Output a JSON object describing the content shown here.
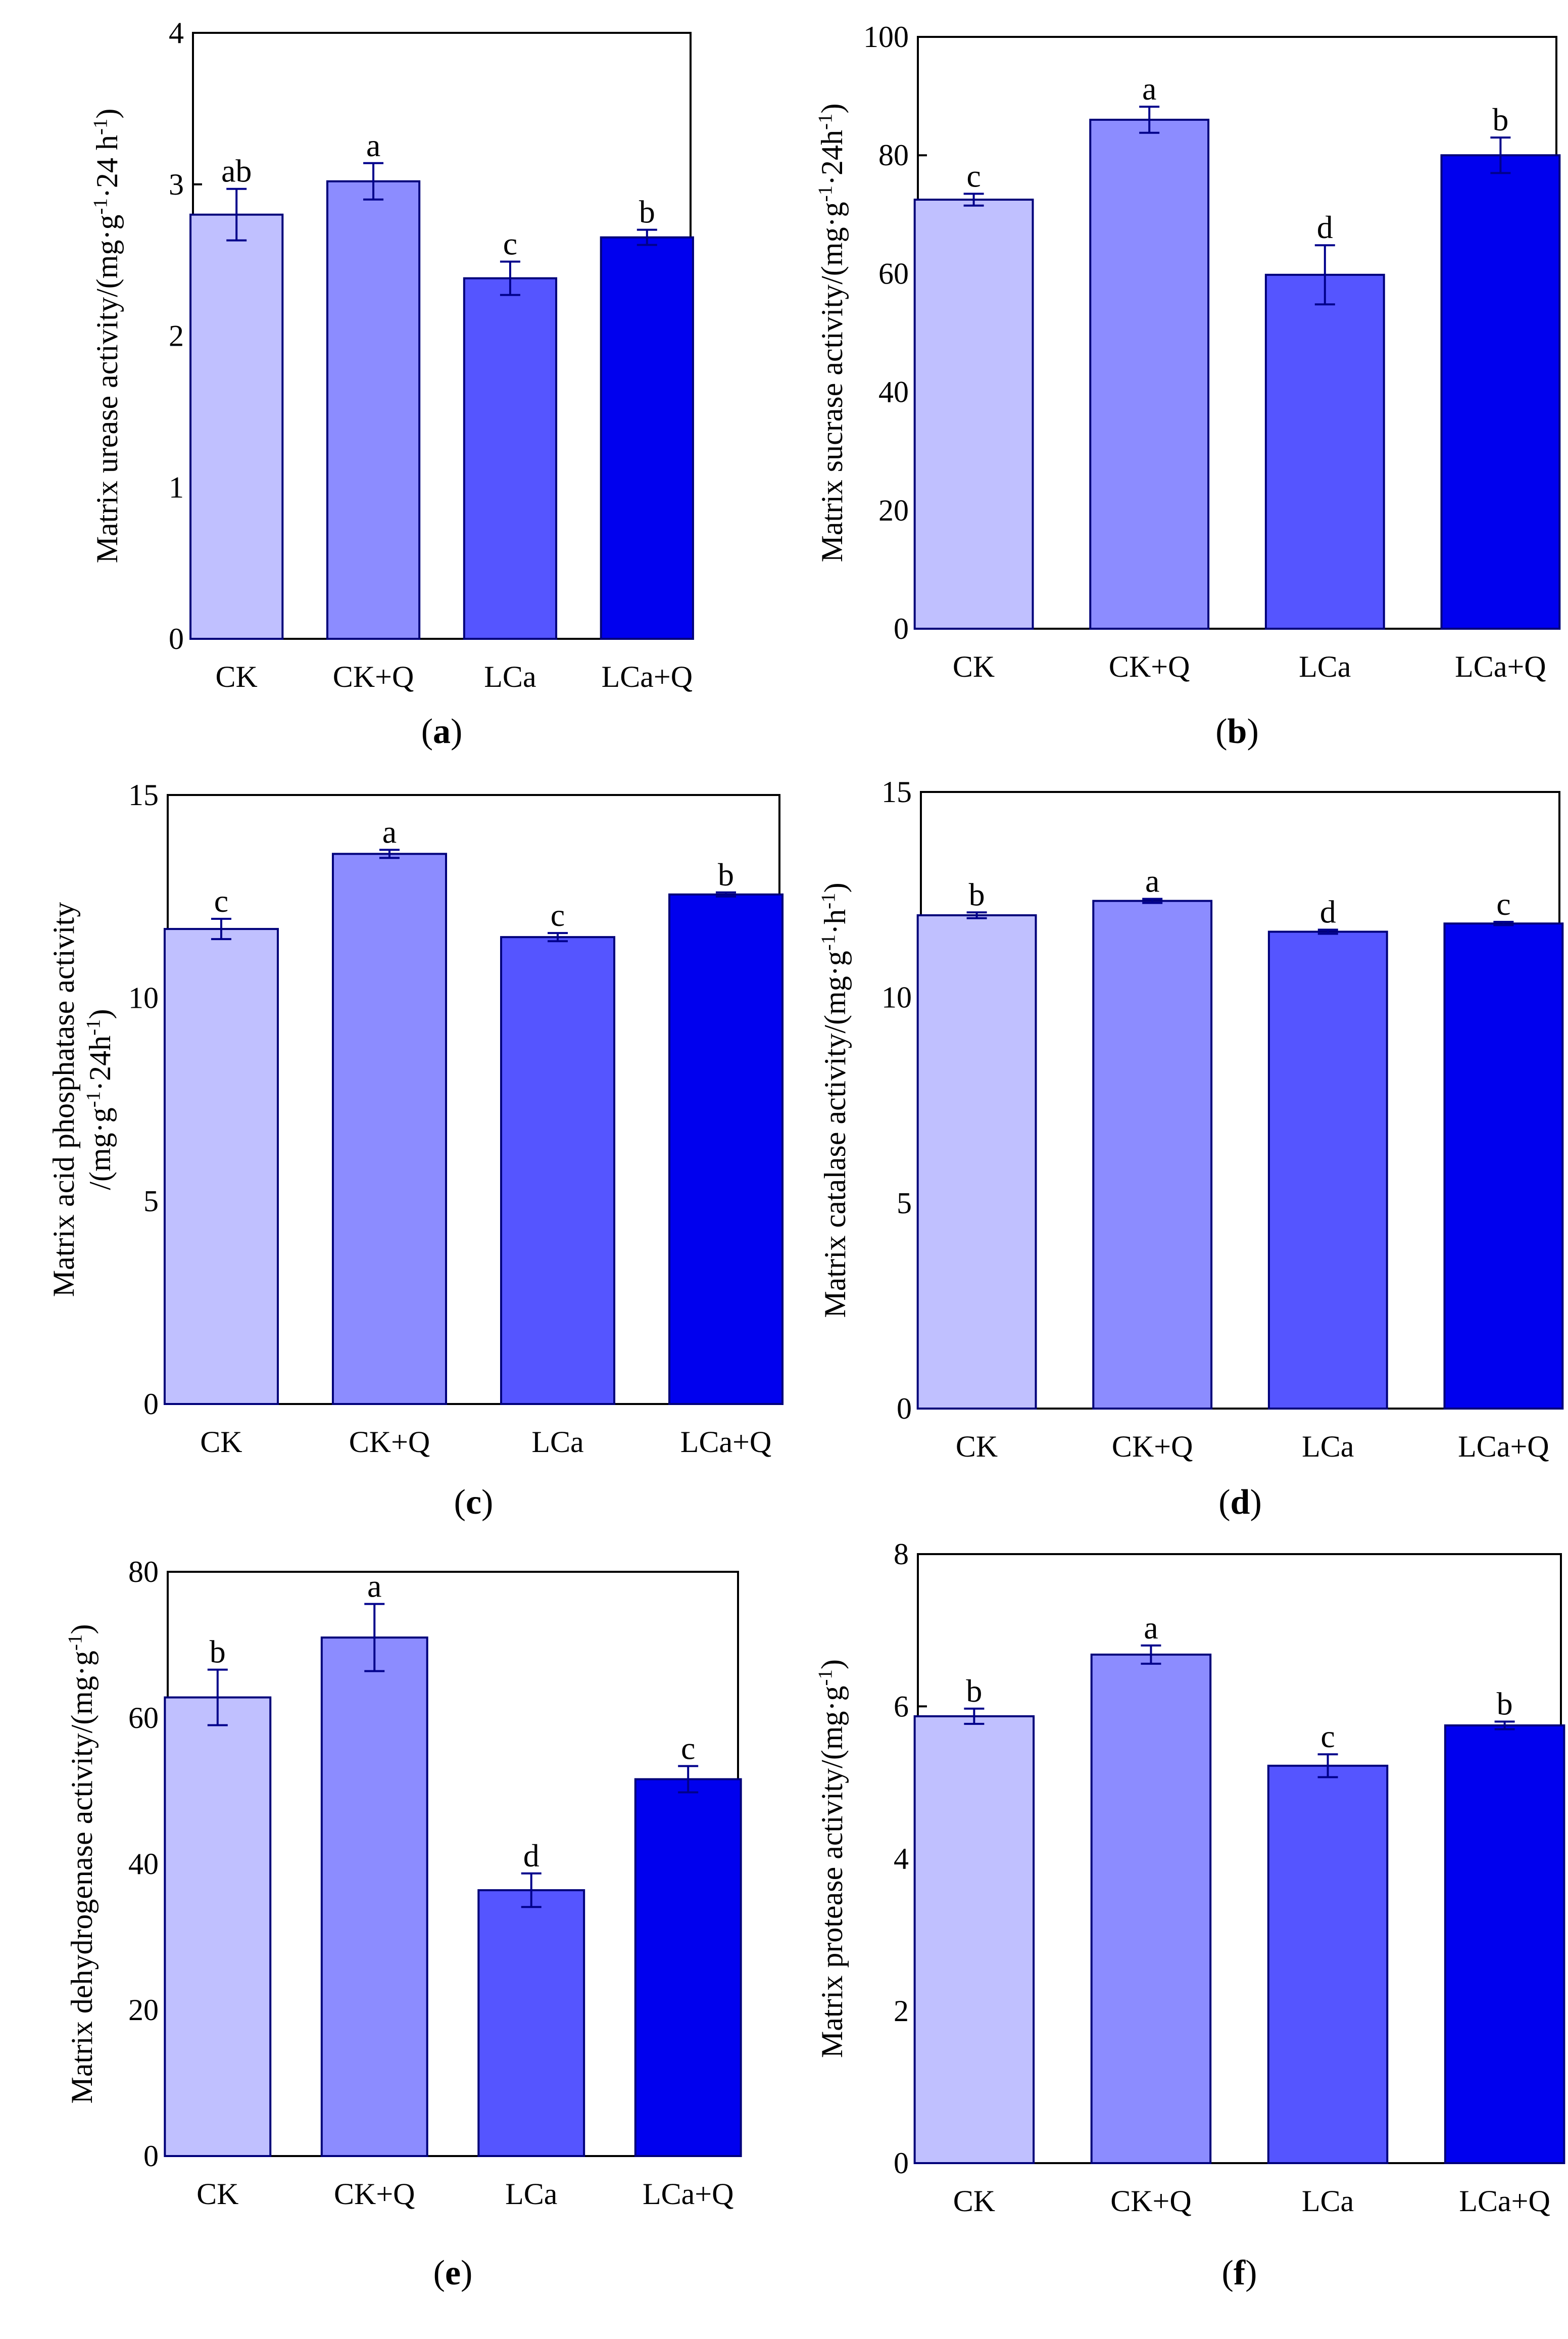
{
  "colors": [
    "#c0c0ff",
    "#8c8cff",
    "#5555ff",
    "#0000ee"
  ],
  "chart_data": [
    {
      "type": "bar",
      "panel": "a",
      "categories": [
        "CK",
        "CK+Q",
        "LCa",
        "LCa+Q"
      ],
      "values": [
        2.8,
        3.02,
        2.38,
        2.65
      ],
      "errors": [
        0.17,
        0.12,
        0.11,
        0.05
      ],
      "letters": [
        "ab",
        "a",
        "c",
        "b"
      ],
      "ylim": [
        0,
        4
      ],
      "yticks": [
        0,
        1,
        2,
        3,
        4
      ],
      "ylabel": [
        [
          {
            "t": "Matrix urease activity/(mg·g"
          },
          {
            "t": "-1",
            "sup": true
          },
          {
            "t": "·24 h"
          },
          {
            "t": "-1",
            "sup": true
          },
          {
            "t": ")"
          }
        ]
      ]
    },
    {
      "type": "bar",
      "panel": "b",
      "categories": [
        "CK",
        "CK+Q",
        "LCa",
        "LCa+Q"
      ],
      "values": [
        72.5,
        86,
        59.8,
        80
      ],
      "errors": [
        1,
        2.2,
        5,
        3
      ],
      "letters": [
        "c",
        "a",
        "d",
        "b"
      ],
      "ylim": [
        0,
        100
      ],
      "yticks": [
        0,
        20,
        40,
        60,
        80,
        100
      ],
      "ylabel": [
        [
          {
            "t": "Matrix sucrase activity/(mg·g"
          },
          {
            "t": "-1",
            "sup": true
          },
          {
            "t": "·24h"
          },
          {
            "t": "-1",
            "sup": true
          },
          {
            "t": ")"
          }
        ]
      ]
    },
    {
      "type": "bar",
      "panel": "c",
      "categories": [
        "CK",
        "CK+Q",
        "LCa",
        "LCa+Q"
      ],
      "values": [
        11.7,
        13.55,
        11.5,
        12.55
      ],
      "errors": [
        0.25,
        0.1,
        0.1,
        0.05
      ],
      "letters": [
        "c",
        "a",
        "c",
        "b"
      ],
      "ylim": [
        0,
        15
      ],
      "yticks": [
        0,
        5,
        10,
        15
      ],
      "ylabel": [
        [
          {
            "t": "Matrix acid phosphatase activity"
          }
        ],
        [
          {
            "t": "/(mg·g"
          },
          {
            "t": "-1",
            "sup": true
          },
          {
            "t": "·24h"
          },
          {
            "t": "-1",
            "sup": true
          },
          {
            "t": ")"
          }
        ]
      ]
    },
    {
      "type": "bar",
      "panel": "d",
      "categories": [
        "CK",
        "CK+Q",
        "LCa",
        "LCa+Q"
      ],
      "values": [
        12.0,
        12.35,
        11.6,
        11.8
      ],
      "errors": [
        0.07,
        0.05,
        0.05,
        0.04
      ],
      "letters": [
        "b",
        "a",
        "d",
        "c"
      ],
      "ylim": [
        0,
        15
      ],
      "yticks": [
        0,
        5,
        10,
        15
      ],
      "ylabel": [
        [
          {
            "t": "Matrix catalase activity/(mg·g"
          },
          {
            "t": "-1",
            "sup": true
          },
          {
            "t": "·h"
          },
          {
            "t": "-1",
            "sup": true
          },
          {
            "t": ")"
          }
        ]
      ]
    },
    {
      "type": "bar",
      "panel": "e",
      "categories": [
        "CK",
        "CK+Q",
        "LCa",
        "LCa+Q"
      ],
      "values": [
        62.8,
        71,
        36.4,
        51.6
      ],
      "errors": [
        3.8,
        4.6,
        2.3,
        1.8
      ],
      "letters": [
        "b",
        "a",
        "d",
        "c"
      ],
      "ylim": [
        0,
        80
      ],
      "yticks": [
        0,
        20,
        40,
        60,
        80
      ],
      "ylabel": [
        [
          {
            "t": "Matrix dehydrogenase activity/(mg·g"
          },
          {
            "t": "-1",
            "sup": true
          },
          {
            "t": ")"
          }
        ]
      ]
    },
    {
      "type": "bar",
      "panel": "f",
      "categories": [
        "CK",
        "CK+Q",
        "LCa",
        "LCa+Q"
      ],
      "values": [
        5.87,
        6.68,
        5.22,
        5.75
      ],
      "errors": [
        0.1,
        0.12,
        0.15,
        0.05
      ],
      "letters": [
        "b",
        "a",
        "c",
        "b"
      ],
      "ylim": [
        0,
        8
      ],
      "yticks": [
        0,
        2,
        4,
        6,
        8
      ],
      "ylabel": [
        [
          {
            "t": "Matrix protease activity/(mg·g"
          },
          {
            "t": "-1",
            "sup": true
          },
          {
            "t": ")"
          }
        ]
      ]
    }
  ]
}
